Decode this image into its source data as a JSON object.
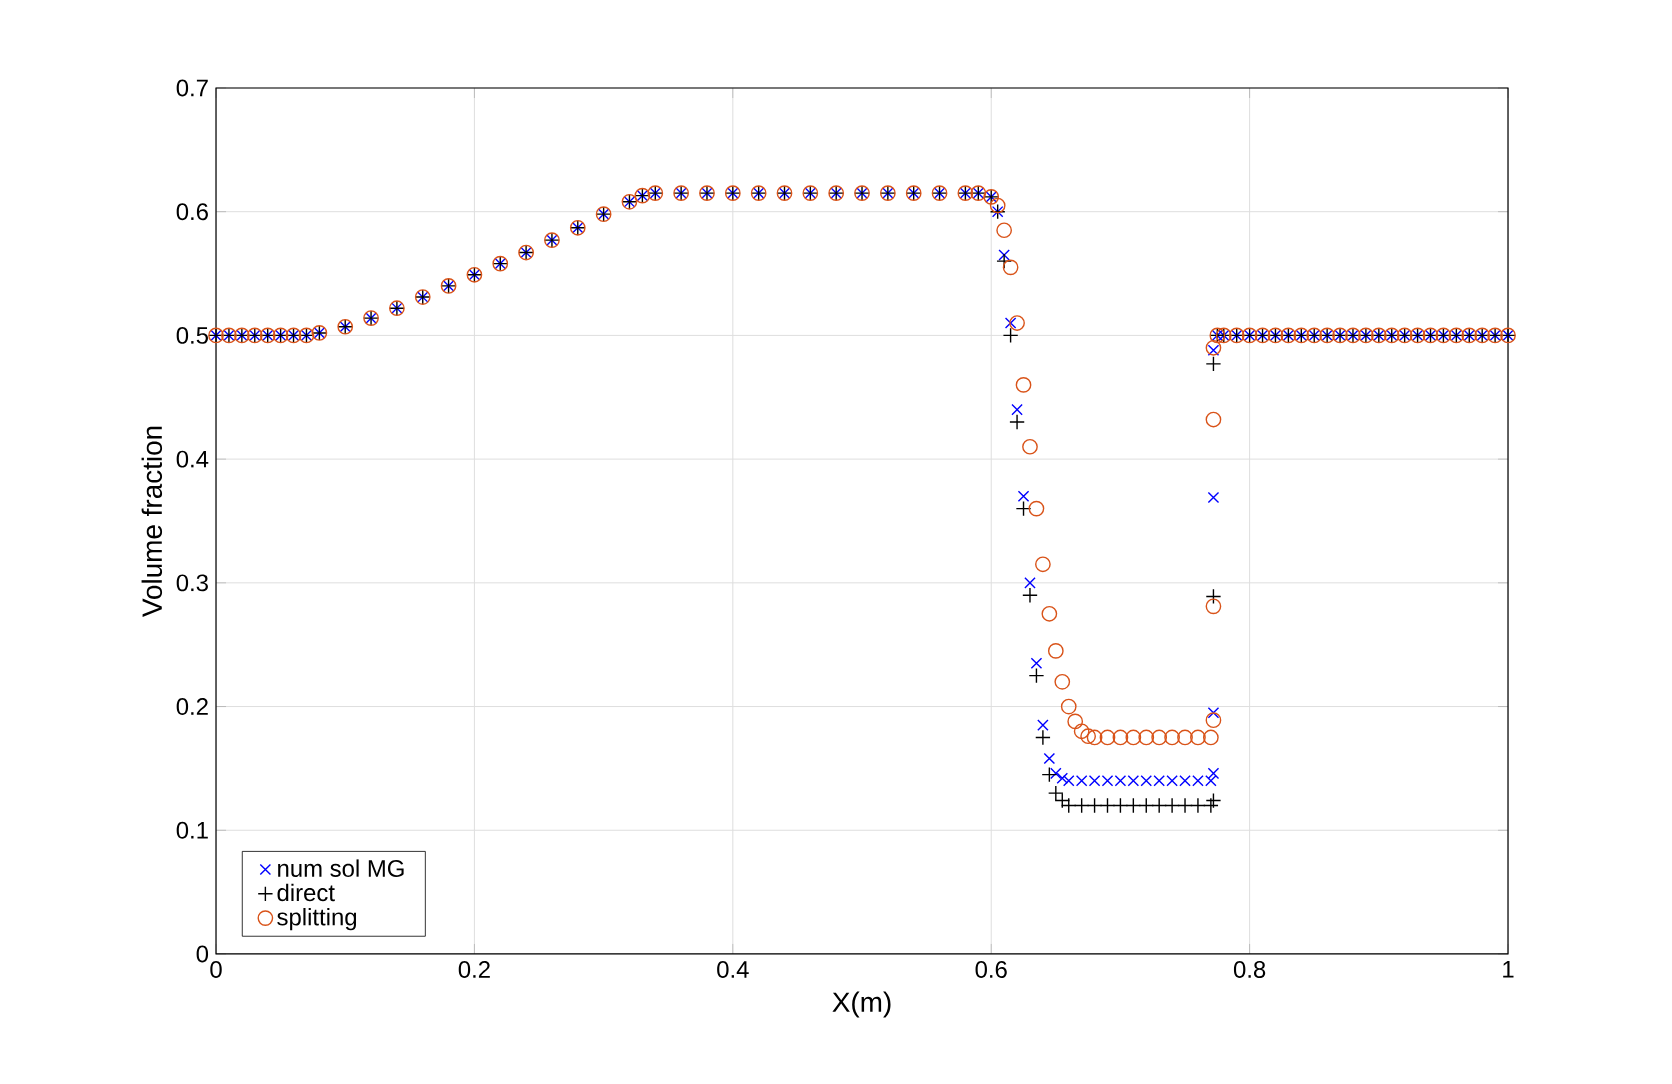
{
  "chart_data": {
    "type": "scatter",
    "xlabel": "X(m)",
    "ylabel": "Volume fraction",
    "xlim": [
      0,
      1
    ],
    "ylim": [
      0,
      0.7
    ],
    "xticks": [
      0,
      0.2,
      0.4,
      0.6,
      0.8,
      1
    ],
    "yticks": [
      0,
      0.1,
      0.2,
      0.3,
      0.4,
      0.5,
      0.6,
      0.7
    ],
    "grid": true,
    "legend": "bottom left",
    "series": [
      {
        "name": "num sol MG",
        "color": "#0000ff",
        "marker": "cross",
        "x": [
          0,
          0.01,
          0.02,
          0.03,
          0.04,
          0.05,
          0.06,
          0.07,
          0.08,
          0.1,
          0.12,
          0.14,
          0.16,
          0.18,
          0.2,
          0.22,
          0.24,
          0.26,
          0.28,
          0.3,
          0.32,
          0.33,
          0.34,
          0.36,
          0.38,
          0.4,
          0.42,
          0.44,
          0.46,
          0.48,
          0.5,
          0.52,
          0.54,
          0.56,
          0.58,
          0.59,
          0.6,
          0.605,
          0.61,
          0.615,
          0.62,
          0.625,
          0.63,
          0.635,
          0.64,
          0.645,
          0.65,
          0.655,
          0.66,
          0.67,
          0.68,
          0.69,
          0.7,
          0.71,
          0.72,
          0.73,
          0.74,
          0.75,
          0.76,
          0.77,
          0.772,
          0.772,
          0.772,
          0.772,
          0.775,
          0.78,
          0.79,
          0.8,
          0.81,
          0.82,
          0.83,
          0.84,
          0.85,
          0.86,
          0.87,
          0.88,
          0.89,
          0.9,
          0.91,
          0.92,
          0.93,
          0.94,
          0.95,
          0.96,
          0.97,
          0.98,
          0.99,
          1
        ],
        "values": [
          0.5,
          0.5,
          0.5,
          0.5,
          0.5,
          0.5,
          0.5,
          0.5,
          0.502,
          0.507,
          0.514,
          0.522,
          0.531,
          0.54,
          0.549,
          0.558,
          0.567,
          0.577,
          0.587,
          0.598,
          0.608,
          0.613,
          0.615,
          0.615,
          0.615,
          0.615,
          0.615,
          0.615,
          0.615,
          0.615,
          0.615,
          0.615,
          0.615,
          0.615,
          0.615,
          0.615,
          0.612,
          0.6,
          0.565,
          0.51,
          0.44,
          0.37,
          0.3,
          0.235,
          0.185,
          0.158,
          0.146,
          0.142,
          0.14,
          0.14,
          0.14,
          0.14,
          0.14,
          0.14,
          0.14,
          0.14,
          0.14,
          0.14,
          0.14,
          0.14,
          0.146,
          0.195,
          0.369,
          0.488,
          0.5,
          0.5,
          0.5,
          0.5,
          0.5,
          0.5,
          0.5,
          0.5,
          0.5,
          0.5,
          0.5,
          0.5,
          0.5,
          0.5,
          0.5,
          0.5,
          0.5,
          0.5,
          0.5,
          0.5,
          0.5,
          0.5,
          0.5,
          0.5
        ]
      },
      {
        "name": "direct",
        "color": "#000000",
        "marker": "plus",
        "x": [
          0,
          0.01,
          0.02,
          0.03,
          0.04,
          0.05,
          0.06,
          0.07,
          0.08,
          0.1,
          0.12,
          0.14,
          0.16,
          0.18,
          0.2,
          0.22,
          0.24,
          0.26,
          0.28,
          0.3,
          0.32,
          0.33,
          0.34,
          0.36,
          0.38,
          0.4,
          0.42,
          0.44,
          0.46,
          0.48,
          0.5,
          0.52,
          0.54,
          0.56,
          0.58,
          0.59,
          0.6,
          0.605,
          0.61,
          0.615,
          0.62,
          0.625,
          0.63,
          0.635,
          0.64,
          0.645,
          0.65,
          0.655,
          0.66,
          0.67,
          0.68,
          0.69,
          0.7,
          0.71,
          0.72,
          0.73,
          0.74,
          0.75,
          0.76,
          0.77,
          0.772,
          0.772,
          0.772,
          0.775,
          0.78,
          0.79,
          0.8,
          0.81,
          0.82,
          0.83,
          0.84,
          0.85,
          0.86,
          0.87,
          0.88,
          0.89,
          0.9,
          0.91,
          0.92,
          0.93,
          0.94,
          0.95,
          0.96,
          0.97,
          0.98,
          0.99,
          1
        ],
        "values": [
          0.5,
          0.5,
          0.5,
          0.5,
          0.5,
          0.5,
          0.5,
          0.5,
          0.502,
          0.507,
          0.514,
          0.522,
          0.531,
          0.54,
          0.549,
          0.558,
          0.567,
          0.577,
          0.587,
          0.598,
          0.608,
          0.613,
          0.615,
          0.615,
          0.615,
          0.615,
          0.615,
          0.615,
          0.615,
          0.615,
          0.615,
          0.615,
          0.615,
          0.615,
          0.615,
          0.615,
          0.612,
          0.6,
          0.56,
          0.5,
          0.43,
          0.36,
          0.29,
          0.225,
          0.175,
          0.145,
          0.13,
          0.124,
          0.12,
          0.12,
          0.12,
          0.12,
          0.12,
          0.12,
          0.12,
          0.12,
          0.12,
          0.12,
          0.12,
          0.12,
          0.124,
          0.289,
          0.477,
          0.5,
          0.5,
          0.5,
          0.5,
          0.5,
          0.5,
          0.5,
          0.5,
          0.5,
          0.5,
          0.5,
          0.5,
          0.5,
          0.5,
          0.5,
          0.5,
          0.5,
          0.5,
          0.5,
          0.5,
          0.5,
          0.5,
          0.5,
          0.5
        ]
      },
      {
        "name": "splitting",
        "color": "#d95319",
        "marker": "circle",
        "x": [
          0,
          0.01,
          0.02,
          0.03,
          0.04,
          0.05,
          0.06,
          0.07,
          0.08,
          0.1,
          0.12,
          0.14,
          0.16,
          0.18,
          0.2,
          0.22,
          0.24,
          0.26,
          0.28,
          0.3,
          0.32,
          0.33,
          0.34,
          0.36,
          0.38,
          0.4,
          0.42,
          0.44,
          0.46,
          0.48,
          0.5,
          0.52,
          0.54,
          0.56,
          0.58,
          0.59,
          0.6,
          0.605,
          0.61,
          0.615,
          0.62,
          0.625,
          0.63,
          0.635,
          0.64,
          0.645,
          0.65,
          0.655,
          0.66,
          0.665,
          0.67,
          0.675,
          0.68,
          0.69,
          0.7,
          0.71,
          0.72,
          0.73,
          0.74,
          0.75,
          0.76,
          0.77,
          0.772,
          0.772,
          0.772,
          0.772,
          0.775,
          0.78,
          0.79,
          0.8,
          0.81,
          0.82,
          0.83,
          0.84,
          0.85,
          0.86,
          0.87,
          0.88,
          0.89,
          0.9,
          0.91,
          0.92,
          0.93,
          0.94,
          0.95,
          0.96,
          0.97,
          0.98,
          0.99,
          1
        ],
        "values": [
          0.5,
          0.5,
          0.5,
          0.5,
          0.5,
          0.5,
          0.5,
          0.5,
          0.502,
          0.507,
          0.514,
          0.522,
          0.531,
          0.54,
          0.549,
          0.558,
          0.567,
          0.577,
          0.587,
          0.598,
          0.608,
          0.613,
          0.615,
          0.615,
          0.615,
          0.615,
          0.615,
          0.615,
          0.615,
          0.615,
          0.615,
          0.615,
          0.615,
          0.615,
          0.615,
          0.615,
          0.612,
          0.605,
          0.585,
          0.555,
          0.51,
          0.46,
          0.41,
          0.36,
          0.315,
          0.275,
          0.245,
          0.22,
          0.2,
          0.188,
          0.18,
          0.176,
          0.175,
          0.175,
          0.175,
          0.175,
          0.175,
          0.175,
          0.175,
          0.175,
          0.175,
          0.175,
          0.189,
          0.281,
          0.432,
          0.49,
          0.5,
          0.5,
          0.5,
          0.5,
          0.5,
          0.5,
          0.5,
          0.5,
          0.5,
          0.5,
          0.5,
          0.5,
          0.5,
          0.5,
          0.5,
          0.5,
          0.5,
          0.5,
          0.5,
          0.5,
          0.5,
          0.5,
          0.5,
          0.5
        ]
      }
    ]
  }
}
